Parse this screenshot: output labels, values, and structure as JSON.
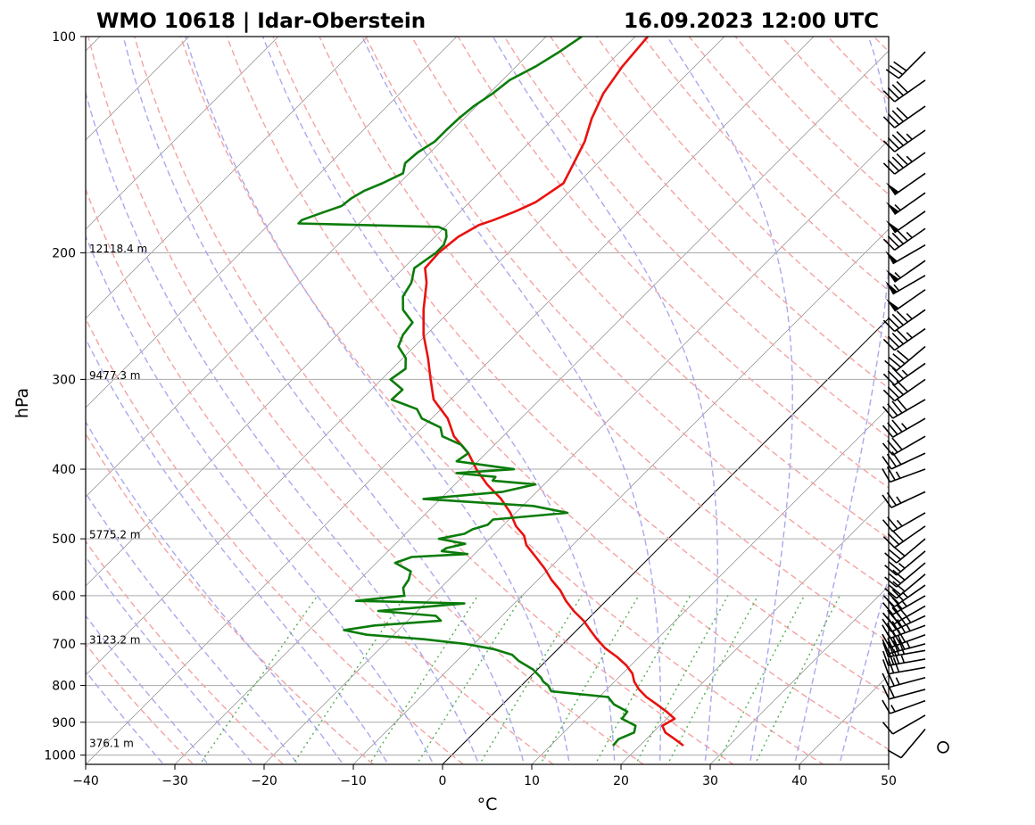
{
  "chart_data": {
    "type": "line",
    "subtype": "skew-t log-p sounding",
    "title_left": "WMO 10618 | Idar-Oberstein",
    "title_right": "16.09.2023 12:00 UTC",
    "xlabel": "°C",
    "ylabel": "hPa",
    "xlim": [
      -40,
      50
    ],
    "ylim": [
      1030,
      100
    ],
    "x_ticks": [
      -40,
      -30,
      -20,
      -10,
      0,
      10,
      20,
      30,
      40,
      50
    ],
    "x_tick_labels": [
      "−40",
      "−30",
      "−20",
      "−10",
      "0",
      "10",
      "20",
      "30",
      "40",
      "50"
    ],
    "y_ticks": [
      1000,
      900,
      800,
      700,
      600,
      500,
      400,
      300,
      200,
      100
    ],
    "y_tick_labels": [
      "1000",
      "900",
      "800",
      "700",
      "600",
      "500",
      "400",
      "300",
      "200",
      "100"
    ],
    "height_labels": [
      {
        "pressure": 200,
        "text": "12118.4 m"
      },
      {
        "pressure": 300,
        "text": "9477.3 m"
      },
      {
        "pressure": 500,
        "text": "5775.2 m"
      },
      {
        "pressure": 700,
        "text": "3123.2 m"
      },
      {
        "pressure": 975,
        "text": "376.1 m"
      }
    ],
    "series": [
      {
        "name": "Temperature",
        "color": "#e8120f",
        "pressure": [
          970,
          950,
          930,
          910,
          890,
          870,
          850,
          830,
          810,
          790,
          770,
          750,
          730,
          710,
          690,
          670,
          650,
          630,
          610,
          590,
          570,
          550,
          530,
          510,
          495,
          480,
          460,
          440,
          420,
          400,
          380,
          360,
          340,
          320,
          300,
          280,
          260,
          240,
          220,
          210,
          200,
          190,
          183,
          180,
          175,
          170,
          165,
          160,
          150,
          140,
          130,
          120,
          110,
          100
        ],
        "temperature": [
          24.9,
          23.2,
          21.4,
          20.3,
          20.9,
          19.2,
          17.3,
          15.3,
          13.6,
          12.2,
          11.1,
          9.5,
          7.5,
          5.2,
          3.3,
          1.5,
          -0.3,
          -2.5,
          -4.5,
          -6.3,
          -8.5,
          -10.5,
          -12.8,
          -15.2,
          -16.5,
          -18.5,
          -20.6,
          -23.2,
          -26.4,
          -29.3,
          -32.0,
          -35.5,
          -38.2,
          -41.9,
          -44.5,
          -47.2,
          -50.3,
          -53.1,
          -55.8,
          -57.6,
          -57.8,
          -57.4,
          -56.4,
          -55.3,
          -53.8,
          -52.6,
          -52.1,
          -51.6,
          -52.7,
          -53.9,
          -55.7,
          -57.2,
          -58.1,
          -58.6
        ]
      },
      {
        "name": "Dewpoint",
        "color": "#0a7c0a",
        "pressure": [
          970,
          950,
          930,
          910,
          890,
          870,
          850,
          830,
          815,
          800,
          790,
          780,
          760,
          740,
          725,
          712,
          700,
          690,
          680,
          670,
          660,
          650,
          640,
          630,
          620,
          615,
          610,
          600,
          585,
          570,
          555,
          540,
          530,
          525,
          520,
          515,
          508,
          500,
          492,
          485,
          478,
          470,
          460,
          450,
          440,
          430,
          420,
          415,
          410,
          405,
          400,
          390,
          380,
          370,
          360,
          350,
          340,
          330,
          320,
          310,
          300,
          290,
          280,
          270,
          260,
          250,
          240,
          230,
          220,
          210,
          200,
          195,
          190,
          186,
          184,
          182,
          180,
          176,
          172,
          168,
          164,
          160,
          155,
          150,
          145,
          140,
          135,
          130,
          125,
          120,
          115,
          110,
          105,
          100
        ],
        "dewpoint": [
          17.0,
          16.9,
          17.9,
          17.3,
          15.0,
          14.8,
          12.5,
          11.0,
          4.0,
          3.0,
          2.0,
          1.3,
          -0.5,
          -3.0,
          -4.5,
          -7.2,
          -11.0,
          -16.0,
          -23.0,
          -26.1,
          -23.2,
          -16.3,
          -17.4,
          -24.4,
          -18.6,
          -15.6,
          -28.0,
          -23.2,
          -24.2,
          -24.5,
          -25.2,
          -27.9,
          -26.7,
          -20.8,
          -24.0,
          -23.8,
          -22.2,
          -25.7,
          -23.4,
          -23.0,
          -21.8,
          -21.8,
          -14.2,
          -18.8,
          -31.9,
          -23.8,
          -21.0,
          -26.2,
          -26.3,
          -31.1,
          -25.1,
          -32.4,
          -32.0,
          -33.7,
          -36.8,
          -38.0,
          -41.1,
          -42.7,
          -46.6,
          -46.5,
          -49.0,
          -48.5,
          -49.7,
          -51.8,
          -52.6,
          -52.9,
          -55.4,
          -56.9,
          -57.5,
          -58.8,
          -58.1,
          -58.1,
          -58.7,
          -59.5,
          -60.7,
          -76.8,
          -76.8,
          -75.4,
          -73.9,
          -73.7,
          -73.1,
          -71.9,
          -70.7,
          -71.6,
          -71.4,
          -70.7,
          -70.7,
          -70.6,
          -70.3,
          -69.6,
          -69.2,
          -67.8,
          -66.8,
          -66.0
        ]
      }
    ],
    "reference_lines": {
      "isotherm_zero_highlighted": true,
      "dry_adiabats": "dashed light red",
      "moist_adiabats": "dashed light blue",
      "mixing_ratio_lines": "dotted green",
      "isotherms": "thin grey"
    },
    "wind_barbs": {
      "position": "right",
      "pressure": [
        975,
        920,
        880,
        840,
        810,
        780,
        755,
        735,
        715,
        700,
        680,
        660,
        640,
        620,
        600,
        580,
        560,
        540,
        520,
        500,
        480,
        460,
        430,
        400,
        380,
        360,
        340,
        320,
        300,
        285,
        270,
        255,
        240,
        225,
        215,
        205,
        195,
        185,
        175,
        165,
        155,
        145,
        135,
        125,
        115,
        105
      ],
      "speed_kt": [
        0,
        10,
        10,
        15,
        20,
        25,
        30,
        35,
        40,
        45,
        40,
        45,
        45,
        40,
        35,
        35,
        30,
        30,
        25,
        30,
        30,
        25,
        25,
        25,
        30,
        30,
        35,
        40,
        40,
        35,
        40,
        45,
        45,
        50,
        55,
        55,
        50,
        45,
        50,
        55,
        50,
        45,
        45,
        40,
        40,
        30
      ],
      "direction_deg": [
        0,
        220,
        240,
        250,
        255,
        255,
        260,
        260,
        260,
        255,
        250,
        250,
        245,
        240,
        240,
        235,
        230,
        230,
        230,
        230,
        235,
        240,
        245,
        250,
        245,
        240,
        240,
        240,
        235,
        235,
        230,
        235,
        235,
        235,
        240,
        235,
        240,
        235,
        235,
        235,
        235,
        235,
        235,
        235,
        235,
        225
      ]
    },
    "colors": {
      "temperature": "#e8120f",
      "dewpoint": "#0a7c0a",
      "dry_adiabat": "#f4a3a3",
      "moist_adiabat": "#a9a9ee",
      "mixing_ratio": "#4fae4f",
      "isotherm": "#888888",
      "isobar": "#aaaaaa"
    }
  }
}
